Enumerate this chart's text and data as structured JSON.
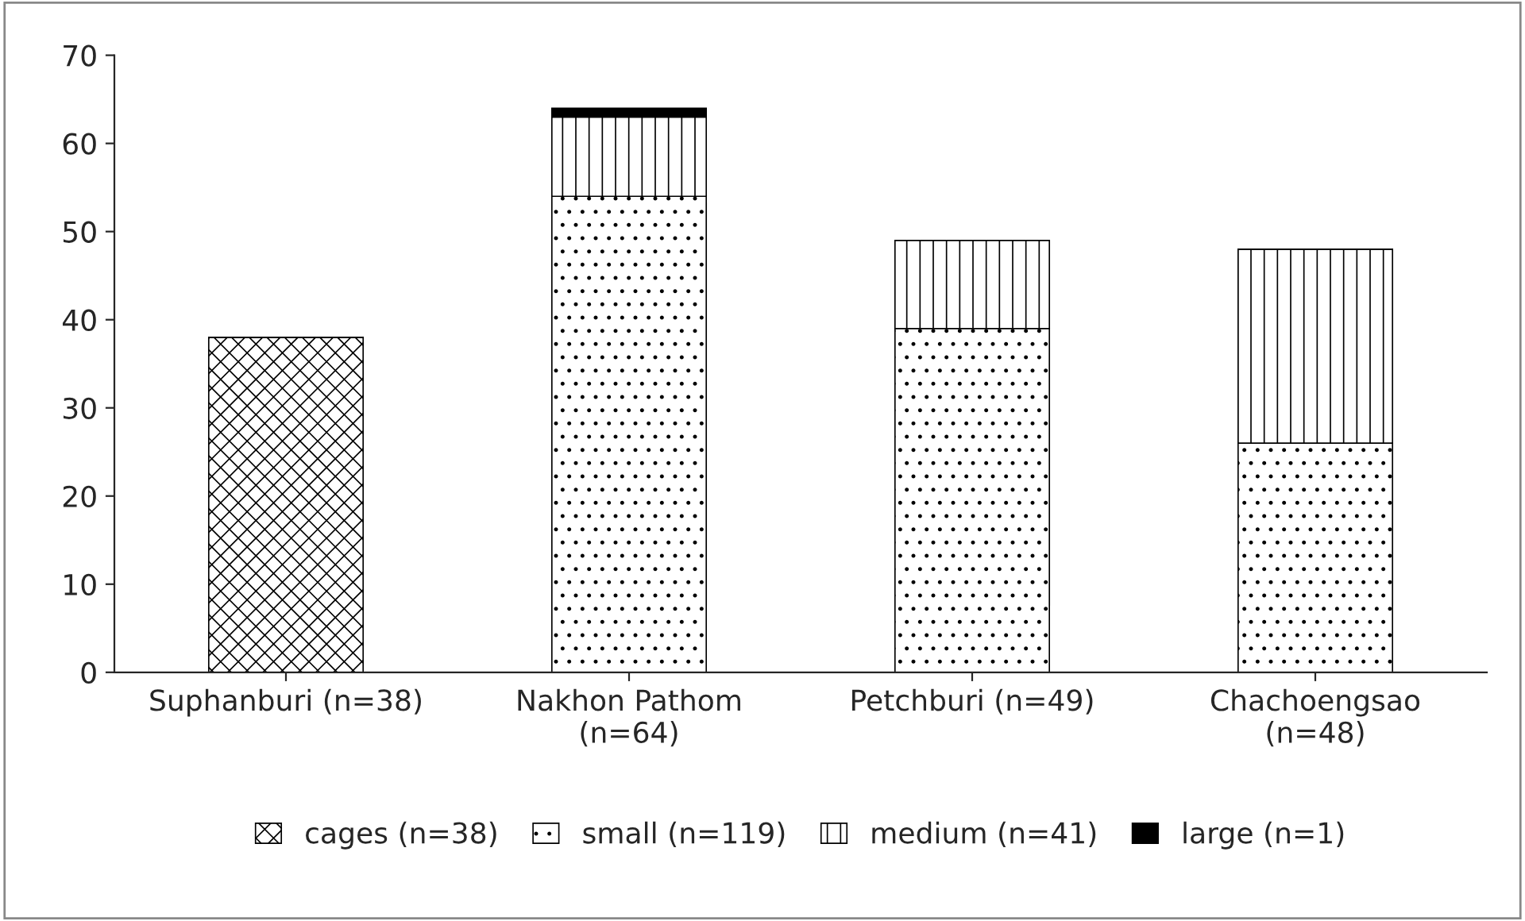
{
  "chart_data": {
    "type": "bar",
    "stacked": true,
    "categories": [
      "Suphanburi (n=38)",
      "Nakhon Pathom\n(n=64)",
      "Petchburi (n=49)",
      "Chachoengsao\n(n=48)"
    ],
    "series": [
      {
        "name": "cages (n=38)",
        "color": "#000000",
        "values": [
          38,
          0,
          0,
          0
        ]
      },
      {
        "name": "small (n=119)",
        "color": "#000000",
        "values": [
          0,
          54,
          39,
          26
        ]
      },
      {
        "name": "medium (n=41)",
        "color": "#000000",
        "values": [
          0,
          9,
          10,
          22
        ]
      },
      {
        "name": "large (n=1)",
        "color": "#000000",
        "values": [
          0,
          1,
          0,
          0
        ]
      }
    ],
    "ylim": [
      0,
      70
    ],
    "yticks": [
      0,
      10,
      20,
      30,
      40,
      50,
      60,
      70
    ],
    "grid": false,
    "legend": "bottom"
  }
}
